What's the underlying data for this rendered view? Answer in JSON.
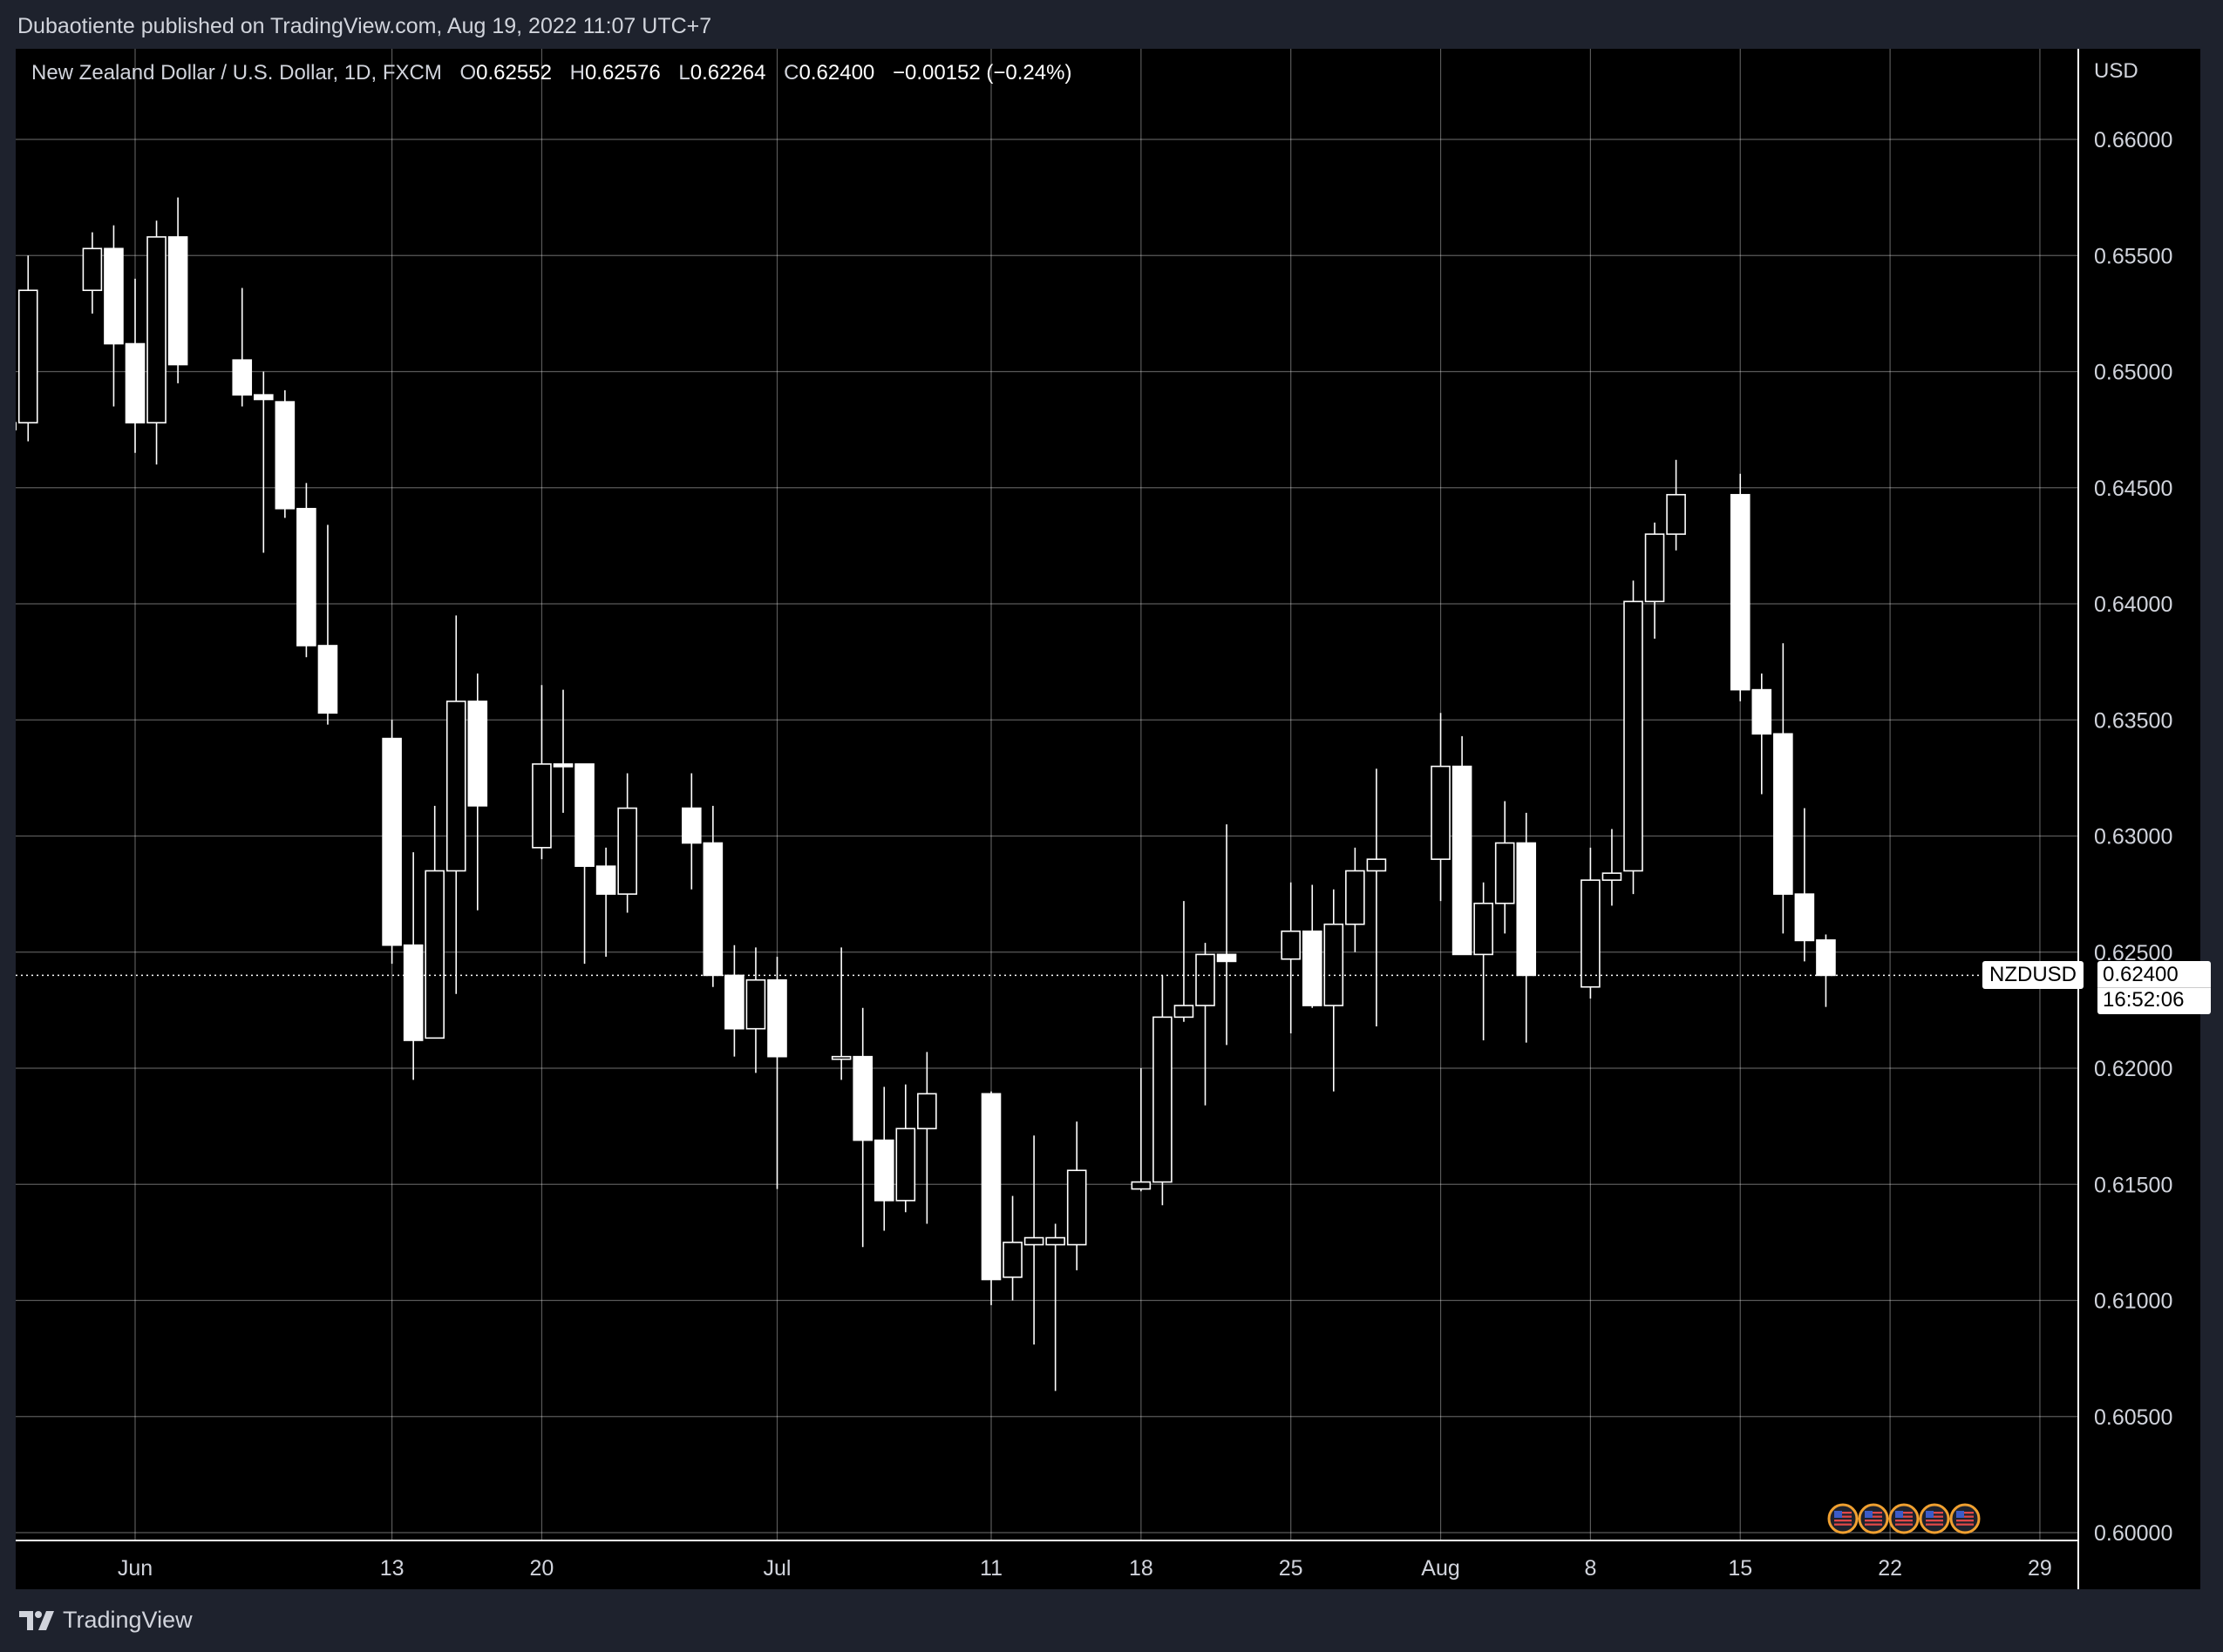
{
  "header": {
    "publisher_line": "Dubaotiente published on TradingView.com, Aug 19, 2022 11:07 UTC+7"
  },
  "legend": {
    "title": "New Zealand Dollar / U.S. Dollar, 1D, FXCM",
    "o_label": "O",
    "o": "0.62552",
    "h_label": "H",
    "h": "0.62576",
    "l_label": "L",
    "l": "0.62264",
    "c_label": "C",
    "c": "0.62400",
    "change": "−0.00152 (−0.24%)"
  },
  "price_axis": {
    "currency": "USD"
  },
  "last_price": {
    "symbol": "NZDUSD",
    "price": "0.62400",
    "countdown": "16:52:06"
  },
  "footer": {
    "brand": "TradingView"
  },
  "colors": {
    "background": "#000000",
    "candle": "#ffffff",
    "grid": "#ffffff",
    "chrome": "#1e222d",
    "event_marker": "#f0a030"
  },
  "icons": {
    "logo": "tradingview-logo-icon",
    "events": "us-flag-icon"
  },
  "chart_data": {
    "type": "candlestick",
    "title": "New Zealand Dollar / U.S. Dollar, 1D, FXCM",
    "ylim": [
      0.6,
      0.66
    ],
    "y_ticks": [
      "0.60000",
      "0.60500",
      "0.61000",
      "0.61500",
      "0.62000",
      "0.62500",
      "0.63000",
      "0.63500",
      "0.64000",
      "0.64500",
      "0.65000",
      "0.65500",
      "0.66000"
    ],
    "x_ticks": [
      {
        "label": "Jun",
        "date": "2022-06-01"
      },
      {
        "label": "13",
        "date": "2022-06-13"
      },
      {
        "label": "20",
        "date": "2022-06-20"
      },
      {
        "label": "Jul",
        "date": "2022-07-01"
      },
      {
        "label": "11",
        "date": "2022-07-11"
      },
      {
        "label": "18",
        "date": "2022-07-18"
      },
      {
        "label": "25",
        "date": "2022-07-25"
      },
      {
        "label": "Aug",
        "date": "2022-08-01"
      },
      {
        "label": "8",
        "date": "2022-08-08"
      },
      {
        "label": "15",
        "date": "2022-08-15"
      },
      {
        "label": "22",
        "date": "2022-08-22"
      },
      {
        "label": "29",
        "date": "2022-08-29"
      }
    ],
    "grid": true,
    "last_price": 0.624,
    "event_markers": 5,
    "candles": [
      {
        "d": "2022-05-26",
        "o": 0.6475,
        "h": 0.6482,
        "l": 0.6455,
        "c": 0.6478
      },
      {
        "d": "2022-05-27",
        "o": 0.6478,
        "h": 0.655,
        "l": 0.647,
        "c": 0.6535
      },
      {
        "d": "2022-05-30",
        "o": 0.6535,
        "h": 0.656,
        "l": 0.6525,
        "c": 0.6553
      },
      {
        "d": "2022-05-31",
        "o": 0.6553,
        "h": 0.6563,
        "l": 0.6485,
        "c": 0.6512
      },
      {
        "d": "2022-06-01",
        "o": 0.6512,
        "h": 0.654,
        "l": 0.6465,
        "c": 0.6478
      },
      {
        "d": "2022-06-02",
        "o": 0.6478,
        "h": 0.6565,
        "l": 0.646,
        "c": 0.6558
      },
      {
        "d": "2022-06-03",
        "o": 0.6558,
        "h": 0.6575,
        "l": 0.6495,
        "c": 0.6503
      },
      {
        "d": "2022-06-06",
        "o": 0.6505,
        "h": 0.6536,
        "l": 0.6485,
        "c": 0.649
      },
      {
        "d": "2022-06-07",
        "o": 0.649,
        "h": 0.65,
        "l": 0.6422,
        "c": 0.6488
      },
      {
        "d": "2022-06-08",
        "o": 0.6487,
        "h": 0.6492,
        "l": 0.6437,
        "c": 0.6441
      },
      {
        "d": "2022-06-09",
        "o": 0.6441,
        "h": 0.6452,
        "l": 0.6377,
        "c": 0.6382
      },
      {
        "d": "2022-06-10",
        "o": 0.6382,
        "h": 0.6434,
        "l": 0.6348,
        "c": 0.6353
      },
      {
        "d": "2022-06-13",
        "o": 0.6342,
        "h": 0.635,
        "l": 0.6245,
        "c": 0.6253
      },
      {
        "d": "2022-06-14",
        "o": 0.6253,
        "h": 0.6293,
        "l": 0.6195,
        "c": 0.6212
      },
      {
        "d": "2022-06-15",
        "o": 0.6213,
        "h": 0.6313,
        "l": 0.6215,
        "c": 0.6285
      },
      {
        "d": "2022-06-16",
        "o": 0.6285,
        "h": 0.6395,
        "l": 0.6232,
        "c": 0.6358
      },
      {
        "d": "2022-06-17",
        "o": 0.6358,
        "h": 0.637,
        "l": 0.6268,
        "c": 0.6313
      },
      {
        "d": "2022-06-20",
        "o": 0.6295,
        "h": 0.6365,
        "l": 0.629,
        "c": 0.6331
      },
      {
        "d": "2022-06-21",
        "o": 0.6331,
        "h": 0.6363,
        "l": 0.631,
        "c": 0.633
      },
      {
        "d": "2022-06-22",
        "o": 0.6331,
        "h": 0.633,
        "l": 0.6245,
        "c": 0.6287
      },
      {
        "d": "2022-06-23",
        "o": 0.6287,
        "h": 0.6295,
        "l": 0.6248,
        "c": 0.6275
      },
      {
        "d": "2022-06-24",
        "o": 0.6275,
        "h": 0.6327,
        "l": 0.6267,
        "c": 0.6312
      },
      {
        "d": "2022-06-27",
        "o": 0.6312,
        "h": 0.6327,
        "l": 0.6277,
        "c": 0.6297
      },
      {
        "d": "2022-06-28",
        "o": 0.6297,
        "h": 0.6313,
        "l": 0.6235,
        "c": 0.624
      },
      {
        "d": "2022-06-29",
        "o": 0.624,
        "h": 0.6253,
        "l": 0.6205,
        "c": 0.6217
      },
      {
        "d": "2022-06-30",
        "o": 0.6217,
        "h": 0.6252,
        "l": 0.6198,
        "c": 0.6238
      },
      {
        "d": "2022-07-01",
        "o": 0.6238,
        "h": 0.6248,
        "l": 0.6148,
        "c": 0.6205
      },
      {
        "d": "2022-07-04",
        "o": 0.6205,
        "h": 0.6252,
        "l": 0.6195,
        "c": 0.6205
      },
      {
        "d": "2022-07-05",
        "o": 0.6205,
        "h": 0.6226,
        "l": 0.6123,
        "c": 0.6169
      },
      {
        "d": "2022-07-06",
        "o": 0.6169,
        "h": 0.6192,
        "l": 0.613,
        "c": 0.6143
      },
      {
        "d": "2022-07-07",
        "o": 0.6143,
        "h": 0.6193,
        "l": 0.6138,
        "c": 0.6174
      },
      {
        "d": "2022-07-08",
        "o": 0.6174,
        "h": 0.6207,
        "l": 0.6133,
        "c": 0.6189
      },
      {
        "d": "2022-07-11",
        "o": 0.6189,
        "h": 0.619,
        "l": 0.6098,
        "c": 0.6109
      },
      {
        "d": "2022-07-12",
        "o": 0.611,
        "h": 0.6145,
        "l": 0.61,
        "c": 0.6125
      },
      {
        "d": "2022-07-13",
        "o": 0.6124,
        "h": 0.6171,
        "l": 0.6081,
        "c": 0.6127
      },
      {
        "d": "2022-07-14",
        "o": 0.6124,
        "h": 0.6133,
        "l": 0.6061,
        "c": 0.6127
      },
      {
        "d": "2022-07-15",
        "o": 0.6124,
        "h": 0.6177,
        "l": 0.6113,
        "c": 0.6156
      },
      {
        "d": "2022-07-18",
        "o": 0.6148,
        "h": 0.62,
        "l": 0.6147,
        "c": 0.6151
      },
      {
        "d": "2022-07-19",
        "o": 0.6151,
        "h": 0.624,
        "l": 0.6141,
        "c": 0.6222
      },
      {
        "d": "2022-07-20",
        "o": 0.6222,
        "h": 0.6272,
        "l": 0.622,
        "c": 0.6227
      },
      {
        "d": "2022-07-21",
        "o": 0.6227,
        "h": 0.6254,
        "l": 0.6184,
        "c": 0.6249
      },
      {
        "d": "2022-07-22",
        "o": 0.6249,
        "h": 0.6305,
        "l": 0.621,
        "c": 0.6246
      },
      {
        "d": "2022-07-25",
        "o": 0.6247,
        "h": 0.628,
        "l": 0.6215,
        "c": 0.6259
      },
      {
        "d": "2022-07-26",
        "o": 0.6259,
        "h": 0.6279,
        "l": 0.6226,
        "c": 0.6227
      },
      {
        "d": "2022-07-27",
        "o": 0.6227,
        "h": 0.6277,
        "l": 0.619,
        "c": 0.6262
      },
      {
        "d": "2022-07-28",
        "o": 0.6262,
        "h": 0.6295,
        "l": 0.625,
        "c": 0.6285
      },
      {
        "d": "2022-07-29",
        "o": 0.6285,
        "h": 0.6329,
        "l": 0.6218,
        "c": 0.629
      },
      {
        "d": "2022-08-01",
        "o": 0.629,
        "h": 0.6353,
        "l": 0.6272,
        "c": 0.633
      },
      {
        "d": "2022-08-02",
        "o": 0.633,
        "h": 0.6343,
        "l": 0.6249,
        "c": 0.6249
      },
      {
        "d": "2022-08-03",
        "o": 0.6249,
        "h": 0.628,
        "l": 0.6212,
        "c": 0.6271
      },
      {
        "d": "2022-08-04",
        "o": 0.6271,
        "h": 0.6315,
        "l": 0.6258,
        "c": 0.6297
      },
      {
        "d": "2022-08-05",
        "o": 0.6297,
        "h": 0.631,
        "l": 0.6211,
        "c": 0.624
      },
      {
        "d": "2022-08-08",
        "o": 0.6235,
        "h": 0.6295,
        "l": 0.623,
        "c": 0.6281
      },
      {
        "d": "2022-08-09",
        "o": 0.6281,
        "h": 0.6303,
        "l": 0.627,
        "c": 0.6284
      },
      {
        "d": "2022-08-10",
        "o": 0.6285,
        "h": 0.641,
        "l": 0.6275,
        "c": 0.6401
      },
      {
        "d": "2022-08-11",
        "o": 0.6401,
        "h": 0.6435,
        "l": 0.6385,
        "c": 0.643
      },
      {
        "d": "2022-08-12",
        "o": 0.643,
        "h": 0.6462,
        "l": 0.6423,
        "c": 0.6447
      },
      {
        "d": "2022-08-15",
        "o": 0.6447,
        "h": 0.6456,
        "l": 0.6358,
        "c": 0.6363
      },
      {
        "d": "2022-08-16",
        "o": 0.6363,
        "h": 0.637,
        "l": 0.6318,
        "c": 0.6344
      },
      {
        "d": "2022-08-17",
        "o": 0.6344,
        "h": 0.6383,
        "l": 0.6258,
        "c": 0.6275
      },
      {
        "d": "2022-08-18",
        "o": 0.6275,
        "h": 0.6312,
        "l": 0.6246,
        "c": 0.6255
      },
      {
        "d": "2022-08-19",
        "o": 0.62552,
        "h": 0.62576,
        "l": 0.62264,
        "c": 0.624
      }
    ]
  }
}
